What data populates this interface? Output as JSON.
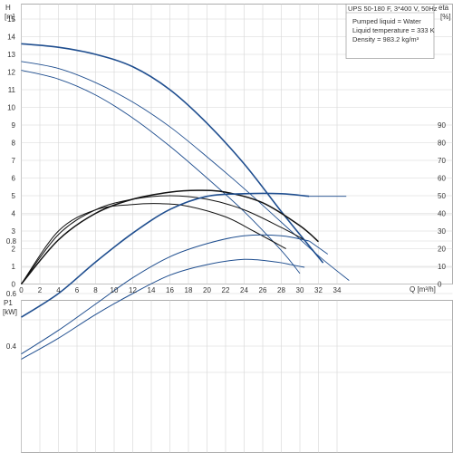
{
  "colors": {
    "blue": "#1f4e8f",
    "black": "#111111",
    "grid": "#d6d6d6"
  },
  "chart_data": [
    {
      "type": "line",
      "name": "head_efficiency",
      "title": "UPS 50-180 F, 3*400 V, 50Hz",
      "info": [
        "Pumped liquid = Water",
        "Liquid temperature = 333 K",
        "Density = 983.2 kg/m³"
      ],
      "xlabel": "Q [m³/h]",
      "ylabel": "H",
      "ylabel_unit": "[m]",
      "y2label": "eta",
      "y2label_unit": "[%]",
      "xlim": [
        0,
        36
      ],
      "ylim": [
        0,
        16
      ],
      "y2lim": [
        0,
        160
      ],
      "x_ticks": [
        0,
        2,
        4,
        6,
        8,
        10,
        12,
        14,
        16,
        18,
        20,
        22,
        24,
        26,
        28,
        30,
        32,
        34
      ],
      "y_ticks": [
        0,
        1,
        2,
        3,
        4,
        5,
        6,
        7,
        8,
        9,
        10,
        11,
        12,
        13,
        14,
        15
      ],
      "y2_ticks": [
        0,
        10,
        20,
        30,
        40,
        50,
        60,
        70,
        80,
        90
      ],
      "grid": true,
      "series": [
        {
          "kind": "head",
          "color": "#1f4e8f",
          "width": 1.6,
          "x": [
            0,
            4,
            8,
            12,
            16,
            20,
            24,
            28,
            30,
            32.5
          ],
          "y": [
            13.6,
            13.4,
            13.0,
            12.3,
            11.0,
            9.1,
            6.8,
            4.1,
            2.8,
            1.2
          ]
        },
        {
          "kind": "head",
          "color": "#1f4e8f",
          "width": 0.9,
          "x": [
            0,
            4,
            8,
            12,
            16,
            20,
            24,
            28,
            32,
            35.3
          ],
          "y": [
            12.6,
            12.2,
            11.4,
            10.3,
            8.9,
            7.2,
            5.4,
            3.5,
            1.6,
            0.2
          ]
        },
        {
          "kind": "head",
          "color": "#1f4e8f",
          "width": 0.9,
          "x": [
            0,
            4,
            8,
            12,
            16,
            20,
            24,
            28,
            30
          ],
          "y": [
            12.1,
            11.6,
            10.7,
            9.4,
            7.8,
            6.0,
            4.1,
            1.9,
            0.6
          ]
        },
        {
          "kind": "eta",
          "color": "#111111",
          "width": 1.5,
          "x": [
            0,
            4,
            8,
            12,
            16,
            19,
            22,
            26,
            30,
            32
          ],
          "y": [
            0,
            25,
            40,
            48,
            52,
            53,
            52,
            46,
            33,
            24
          ]
        },
        {
          "kind": "eta",
          "color": "#111111",
          "width": 1.0,
          "x": [
            0,
            4,
            8,
            12,
            16,
            20,
            24,
            28,
            30.5
          ],
          "y": [
            0,
            28,
            42,
            48,
            50,
            48,
            42,
            32,
            25
          ]
        },
        {
          "kind": "eta",
          "color": "#111111",
          "width": 1.0,
          "x": [
            0,
            4,
            8,
            12,
            15,
            18,
            22,
            25,
            28.5
          ],
          "y": [
            0,
            30,
            42,
            45,
            45.5,
            44,
            38,
            30,
            20
          ]
        }
      ]
    },
    {
      "type": "line",
      "name": "power",
      "ylabel": "P1",
      "ylabel_unit": "[kW]",
      "xlim": [
        0,
        36
      ],
      "ylim": [
        0.2,
        1.0
      ],
      "y_ticks": [
        0.4,
        0.6,
        0.8
      ],
      "grid": true,
      "series": [
        {
          "color": "#1f4e8f",
          "width": 1.6,
          "x": [
            0,
            4,
            8,
            12,
            16,
            20,
            24,
            28,
            31
          ],
          "y": [
            0.51,
            0.6,
            0.72,
            0.83,
            0.92,
            0.97,
            0.98,
            0.98,
            0.97
          ]
        },
        {
          "color": "#1f4e8f",
          "width": 0.9,
          "x": [
            31,
            35
          ],
          "y": [
            0.97,
            0.97
          ]
        },
        {
          "color": "#1f4e8f",
          "width": 1.0,
          "x": [
            0,
            4,
            8,
            12,
            16,
            20,
            24,
            28,
            31
          ],
          "y": [
            0.37,
            0.46,
            0.56,
            0.66,
            0.74,
            0.79,
            0.82,
            0.82,
            0.8
          ]
        },
        {
          "color": "#1f4e8f",
          "width": 0.9,
          "x": [
            31,
            33
          ],
          "y": [
            0.8,
            0.75
          ]
        },
        {
          "color": "#1f4e8f",
          "width": 1.0,
          "x": [
            0,
            4,
            8,
            12,
            16,
            20,
            24,
            27.5,
            29
          ],
          "y": [
            0.35,
            0.43,
            0.52,
            0.6,
            0.67,
            0.71,
            0.73,
            0.72,
            0.71
          ]
        },
        {
          "color": "#1f4e8f",
          "width": 0.9,
          "x": [
            29,
            30.5
          ],
          "y": [
            0.71,
            0.7
          ]
        }
      ]
    }
  ]
}
